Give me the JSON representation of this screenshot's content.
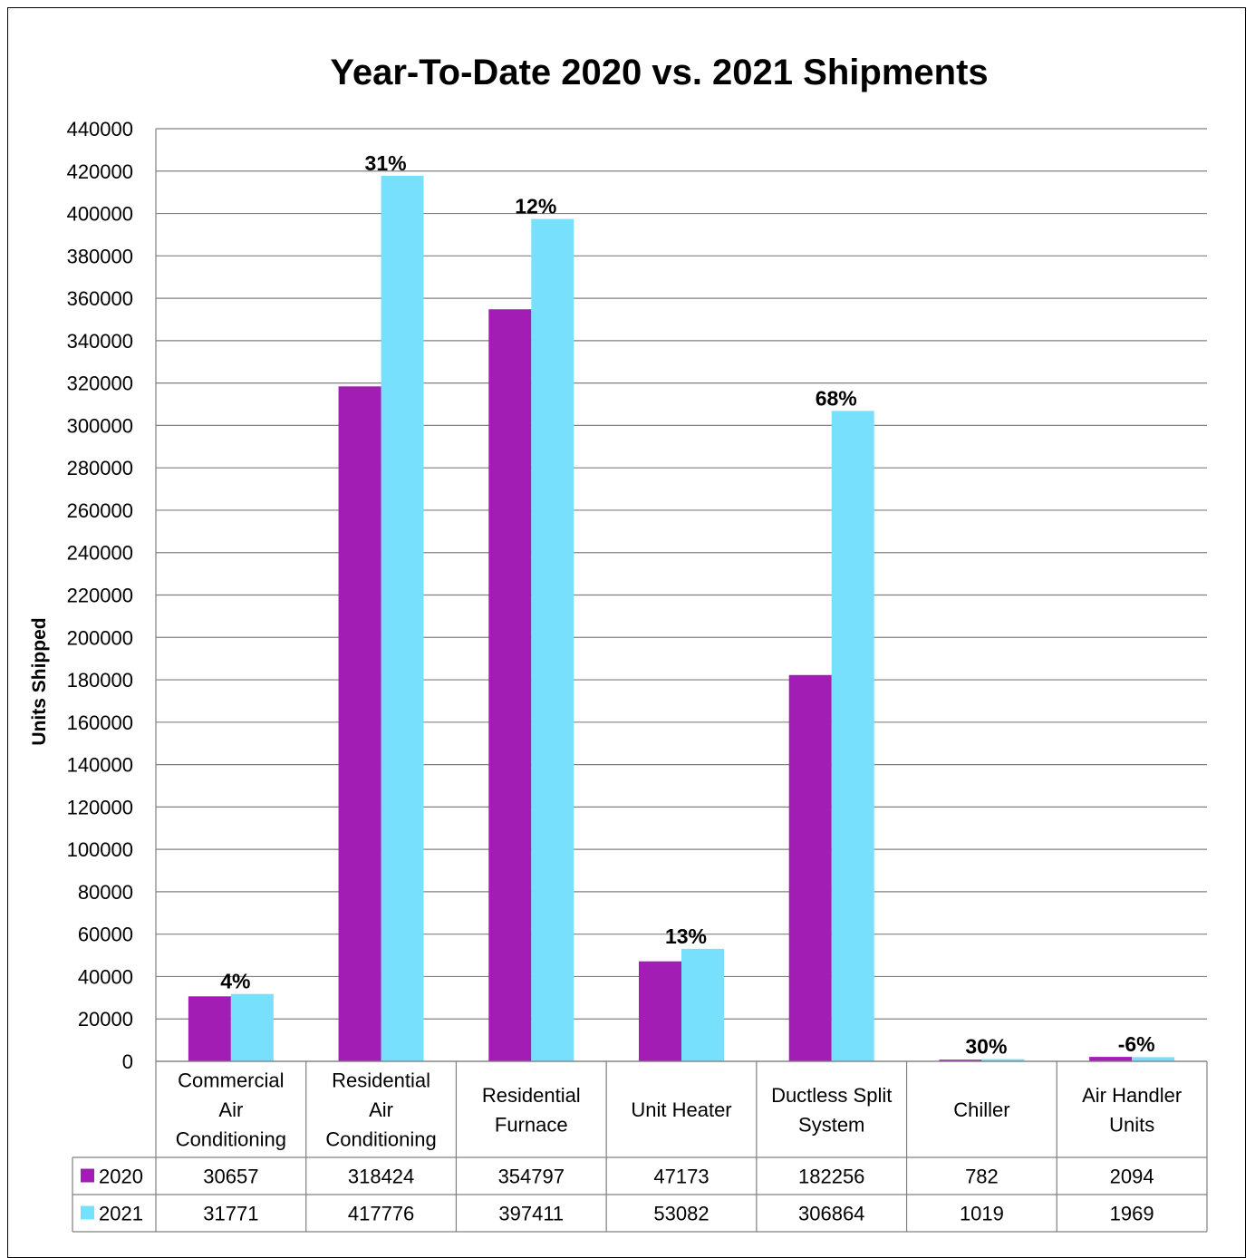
{
  "chart_data": {
    "type": "bar",
    "title": "Year-To-Date 2020 vs. 2021 Shipments",
    "ylabel": "Units Shipped",
    "ylim": [
      0,
      440000
    ],
    "y_ticks": [
      "0",
      "20000",
      "40000",
      "60000",
      "80000",
      "100000",
      "120000",
      "140000",
      "160000",
      "180000",
      "200000",
      "220000",
      "240000",
      "260000",
      "280000",
      "300000",
      "320000",
      "340000",
      "360000",
      "380000",
      "400000",
      "420000",
      "440000"
    ],
    "grid": true,
    "categories": [
      "Commercial Air Conditioning",
      "Residential Air Conditioning",
      "Residential Furnace",
      "Unit Heater",
      "Ductless Split System",
      "Chiller",
      "Air Handler Units"
    ],
    "category_lines": [
      [
        "Commercial",
        "Air",
        "Conditioning"
      ],
      [
        "Residential",
        "Air",
        "Conditioning"
      ],
      [
        "Residential",
        "Furnace"
      ],
      [
        "Unit Heater"
      ],
      [
        "Ductless Split",
        "System"
      ],
      [
        "Chiller"
      ],
      [
        "Air Handler",
        "Units"
      ]
    ],
    "series": [
      {
        "name": "2020",
        "color": "#A21DB4",
        "values": [
          30657,
          318424,
          354797,
          47173,
          182256,
          782,
          2094
        ]
      },
      {
        "name": "2021",
        "color": "#77E0FC",
        "values": [
          31771,
          417776,
          397411,
          53082,
          306864,
          1019,
          1969
        ]
      }
    ],
    "annotations": [
      "4%",
      "31%",
      "12%",
      "13%",
      "68%",
      "30%",
      "-6%"
    ],
    "data_table": {
      "rows": [
        {
          "name": "2020",
          "cells": [
            "30657",
            "318424",
            "354797",
            "47173",
            "182256",
            "782",
            "2094"
          ]
        },
        {
          "name": "2021",
          "cells": [
            "31771",
            "417776",
            "397411",
            "53082",
            "306864",
            "1019",
            "1969"
          ]
        }
      ]
    }
  }
}
